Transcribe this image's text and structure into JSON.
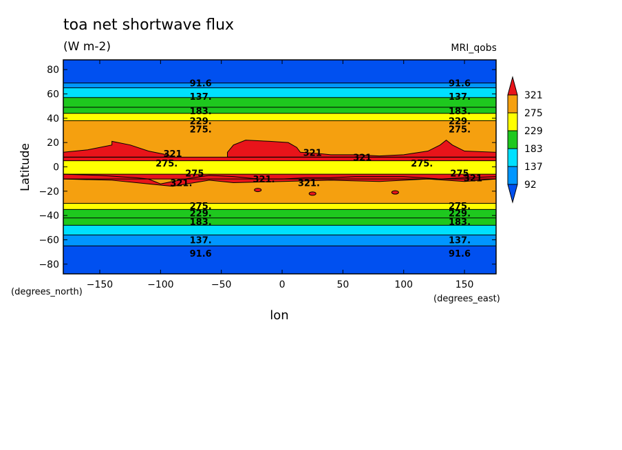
{
  "header": {
    "title": "toa net shortwave flux",
    "units": "(W m-2)",
    "model": "MRI_qobs"
  },
  "chart_data": {
    "type": "heatmap",
    "title": "toa net shortwave flux",
    "subtitle": "(W m-2)",
    "xlabel": "lon",
    "ylabel": "Latitude",
    "x_unit_label": "(degrees_east)",
    "y_unit_label": "(degrees_north)",
    "xlim": [
      -180,
      176
    ],
    "ylim": [
      -88,
      88
    ],
    "xticks": [
      -150,
      -100,
      -50,
      0,
      50,
      100,
      150
    ],
    "yticks": [
      80,
      60,
      40,
      20,
      0,
      -20,
      -40,
      -60,
      -80
    ],
    "colorbar": {
      "levels": [
        "321",
        "275",
        "229",
        "183",
        "137",
        "92"
      ],
      "colors": [
        "#e8141a",
        "#f5a00f",
        "#ffff00",
        "#1ec81e",
        "#00e0ff",
        "#0096ff",
        "#0050f0"
      ],
      "extend": "both"
    },
    "zonal_bands": [
      {
        "lat_from": 88,
        "lat_to": 69,
        "value": 60
      },
      {
        "lat_from": 69,
        "lat_to": 65,
        "value": 110
      },
      {
        "lat_from": 65,
        "lat_to": 57,
        "value": 150
      },
      {
        "lat_from": 57,
        "lat_to": 49,
        "value": 190
      },
      {
        "lat_from": 49,
        "lat_to": 44,
        "value": 220
      },
      {
        "lat_from": 44,
        "lat_to": 38,
        "value": 250
      },
      {
        "lat_from": 38,
        "lat_to": 8,
        "value": 300
      },
      {
        "lat_from": 8,
        "lat_to": 5,
        "value": 330
      },
      {
        "lat_from": 5,
        "lat_to": -6,
        "value": 260
      },
      {
        "lat_from": -6,
        "lat_to": -10,
        "value": 330
      },
      {
        "lat_from": -10,
        "lat_to": -30,
        "value": 300
      },
      {
        "lat_from": -30,
        "lat_to": -35,
        "value": 250
      },
      {
        "lat_from": -35,
        "lat_to": -42,
        "value": 220
      },
      {
        "lat_from": -42,
        "lat_to": -48,
        "value": 190
      },
      {
        "lat_from": -48,
        "lat_to": -56,
        "value": 150
      },
      {
        "lat_from": -56,
        "lat_to": -65,
        "value": 110
      },
      {
        "lat_from": -65,
        "lat_to": -88,
        "value": 60
      }
    ],
    "contour_labels": [
      {
        "text": "91.6",
        "lon": -67,
        "lat": 69
      },
      {
        "text": "91.6",
        "lon": 146,
        "lat": 69
      },
      {
        "text": "137.",
        "lon": -67,
        "lat": 58
      },
      {
        "text": "137.",
        "lon": 146,
        "lat": 58
      },
      {
        "text": "183.",
        "lon": -67,
        "lat": 46
      },
      {
        "text": "183.",
        "lon": 146,
        "lat": 46
      },
      {
        "text": "229.",
        "lon": -67,
        "lat": 38
      },
      {
        "text": "229.",
        "lon": 146,
        "lat": 38
      },
      {
        "text": "275.",
        "lon": -67,
        "lat": 31
      },
      {
        "text": "275.",
        "lon": 146,
        "lat": 31
      },
      {
        "text": "321",
        "lon": -90,
        "lat": 11
      },
      {
        "text": "275.",
        "lon": -95,
        "lat": 3
      },
      {
        "text": "321",
        "lon": 25,
        "lat": 12
      },
      {
        "text": "321",
        "lon": 66,
        "lat": 8
      },
      {
        "text": "275.",
        "lon": 115,
        "lat": 3
      },
      {
        "text": "275",
        "lon": -72,
        "lat": -5
      },
      {
        "text": "275",
        "lon": 146,
        "lat": -5
      },
      {
        "text": "321",
        "lon": 157,
        "lat": -9
      },
      {
        "text": "321.",
        "lon": -83,
        "lat": -13
      },
      {
        "text": "321.",
        "lon": -15,
        "lat": -10
      },
      {
        "text": "321.",
        "lon": 22,
        "lat": -13
      },
      {
        "text": "275.",
        "lon": -67,
        "lat": -32
      },
      {
        "text": "275.",
        "lon": 146,
        "lat": -32
      },
      {
        "text": "229.",
        "lon": -67,
        "lat": -38
      },
      {
        "text": "229.",
        "lon": 146,
        "lat": -38
      },
      {
        "text": "183.",
        "lon": -67,
        "lat": -45
      },
      {
        "text": "183.",
        "lon": 146,
        "lat": -45
      },
      {
        "text": "137.",
        "lon": -67,
        "lat": -60
      },
      {
        "text": "137.",
        "lon": 146,
        "lat": -60
      },
      {
        "text": "91.6",
        "lon": -67,
        "lat": -71
      },
      {
        "text": "91.6",
        "lon": 146,
        "lat": -71
      }
    ],
    "grid": false,
    "legend": "right"
  }
}
